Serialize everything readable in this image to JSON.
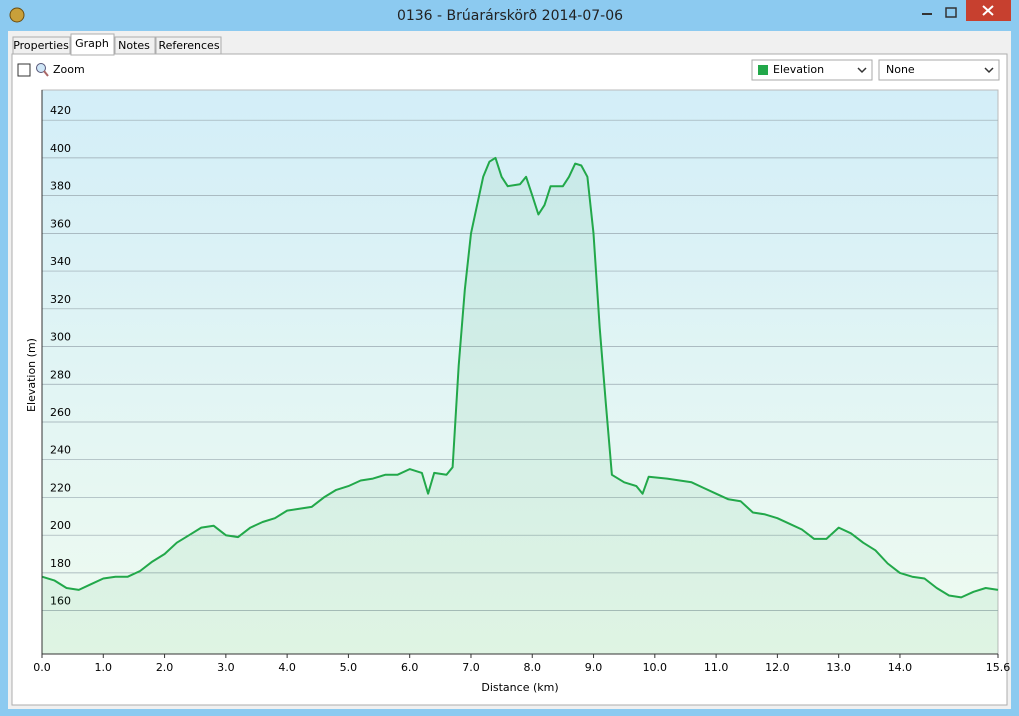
{
  "window": {
    "title": "0136 - Brúarárskörð 2014-07-06"
  },
  "tabs": [
    "Properties",
    "Graph",
    "Notes",
    "References"
  ],
  "toolbar": {
    "zoom_label": "Zoom",
    "compare_select": "None"
  },
  "chart_data": {
    "type": "line",
    "xlabel": "Distance (km)",
    "ylabel": "Elevation (m)",
    "x": [
      0.0,
      0.2,
      0.4,
      0.6,
      0.8,
      1.0,
      1.2,
      1.4,
      1.6,
      1.8,
      2.0,
      2.2,
      2.4,
      2.6,
      2.8,
      3.0,
      3.2,
      3.4,
      3.6,
      3.8,
      4.0,
      4.2,
      4.4,
      4.6,
      4.8,
      5.0,
      5.2,
      5.4,
      5.6,
      5.8,
      6.0,
      6.2,
      6.3,
      6.4,
      6.6,
      6.7,
      6.8,
      6.9,
      7.0,
      7.1,
      7.2,
      7.3,
      7.4,
      7.5,
      7.6,
      7.8,
      7.9,
      8.0,
      8.1,
      8.2,
      8.3,
      8.5,
      8.6,
      8.7,
      8.8,
      8.9,
      9.0,
      9.1,
      9.2,
      9.3,
      9.5,
      9.7,
      9.8,
      9.9,
      10.2,
      10.6,
      10.8,
      11.0,
      11.2,
      11.4,
      11.6,
      11.8,
      12.0,
      12.2,
      12.4,
      12.6,
      12.8,
      13.0,
      13.2,
      13.4,
      13.6,
      13.8,
      14.0,
      14.2,
      14.4,
      14.6,
      14.8,
      15.0,
      15.2,
      15.4,
      15.6
    ],
    "series": [
      {
        "name": "Elevation",
        "color": "#22a84a",
        "values": [
          178,
          176,
          172,
          171,
          174,
          177,
          178,
          178,
          181,
          186,
          190,
          196,
          200,
          204,
          205,
          200,
          199,
          204,
          207,
          209,
          213,
          214,
          215,
          220,
          224,
          226,
          229,
          230,
          232,
          232,
          235,
          233,
          222,
          233,
          232,
          236,
          290,
          330,
          360,
          375,
          390,
          398,
          400,
          390,
          385,
          386,
          390,
          380,
          370,
          375,
          385,
          385,
          390,
          397,
          396,
          390,
          360,
          310,
          270,
          232,
          228,
          226,
          222,
          231,
          230,
          228,
          225,
          222,
          219,
          218,
          212,
          211,
          209,
          206,
          203,
          198,
          198,
          204,
          201,
          196,
          192,
          185,
          180,
          178,
          177,
          172,
          168,
          167,
          170,
          172,
          171
        ]
      }
    ],
    "xlim": [
      0,
      15.6
    ],
    "xticks": [
      {
        "value": 0,
        "label": "0.0"
      },
      {
        "value": 1,
        "label": "1.0"
      },
      {
        "value": 2,
        "label": "2.0"
      },
      {
        "value": 3,
        "label": "3.0"
      },
      {
        "value": 4,
        "label": "4.0"
      },
      {
        "value": 5,
        "label": "5.0"
      },
      {
        "value": 6,
        "label": "6.0"
      },
      {
        "value": 7,
        "label": "7.0"
      },
      {
        "value": 8,
        "label": "8.0"
      },
      {
        "value": 9,
        "label": "9.0"
      },
      {
        "value": 10,
        "label": "10.0"
      },
      {
        "value": 11,
        "label": "11.0"
      },
      {
        "value": 12,
        "label": "12.0"
      },
      {
        "value": 13,
        "label": "13.0"
      },
      {
        "value": 14,
        "label": "14.0"
      },
      {
        "value": 15.6,
        "label": "15.6"
      }
    ],
    "ylim": [
      137,
      436
    ],
    "yticks": [
      160,
      180,
      200,
      220,
      240,
      260,
      280,
      300,
      320,
      340,
      360,
      380,
      400,
      420
    ],
    "grid": true
  }
}
